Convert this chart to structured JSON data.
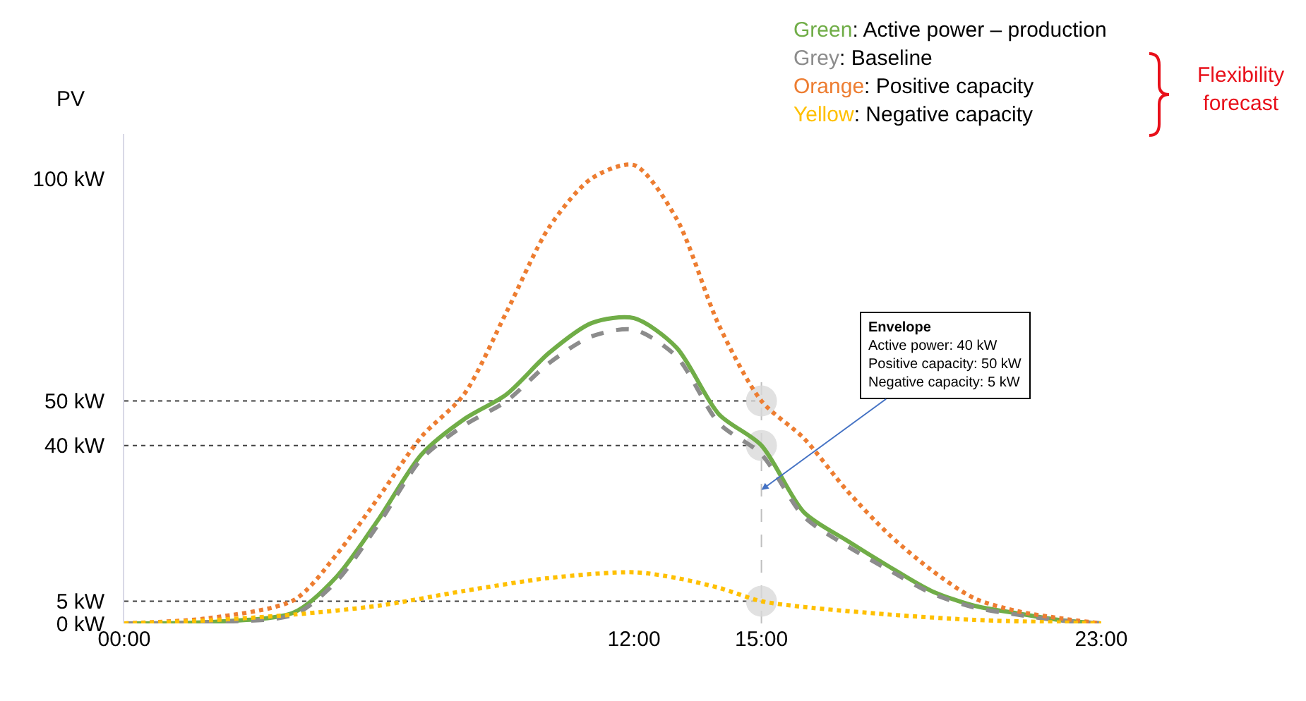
{
  "chart_data": {
    "type": "line",
    "ylabel": "PV",
    "x": [
      0,
      2,
      4,
      5,
      6,
      7,
      8,
      9,
      10,
      11,
      12,
      13,
      14,
      15,
      16,
      17,
      18,
      19,
      20,
      21,
      22,
      23
    ],
    "series": [
      {
        "name": "Green: Active power – production",
        "color": "#70ad47",
        "line_style": "solid",
        "values": [
          0,
          0.3,
          2.5,
          10.5,
          23.6,
          38,
          45.9,
          51.5,
          60.8,
          67.5,
          68.6,
          62,
          47,
          40,
          25,
          18.7,
          12.8,
          7.3,
          4,
          2.3,
          0.8,
          0
        ]
      },
      {
        "name": "Grey: Baseline",
        "color": "#8c8c8c",
        "line_style": "dashed",
        "values": [
          0,
          0.3,
          2,
          9.5,
          22.5,
          37,
          44.5,
          50,
          58.5,
          64.5,
          66,
          60,
          45,
          38,
          24,
          17.5,
          12,
          6.8,
          3.6,
          2,
          0.7,
          0
        ]
      },
      {
        "name": "Orange: Positive capacity",
        "color": "#ed7d31",
        "line_style": "dotted",
        "values": [
          0,
          1.2,
          5.3,
          15.5,
          28.5,
          42,
          51.5,
          70,
          89,
          100,
          103,
          91,
          67,
          50,
          41.6,
          30,
          20,
          12,
          5.7,
          2.8,
          1.2,
          0
        ]
      },
      {
        "name": "Yellow: Negative capacity",
        "color": "#ffc000",
        "line_style": "dotted",
        "x": [
          0,
          2,
          4,
          6,
          8,
          10,
          12,
          13,
          14,
          15,
          16,
          18,
          20,
          23
        ],
        "values": [
          0,
          0.7,
          2,
          4,
          7.3,
          10.2,
          11.5,
          10.2,
          8,
          5,
          3.7,
          2,
          0.8,
          0
        ]
      },
      {
        "type": "scatter",
        "color": "#d9d9d9",
        "marker": "circle",
        "x": [
          15,
          15,
          15
        ],
        "values": [
          50,
          40,
          5
        ]
      }
    ],
    "xlim": [
      0,
      23
    ],
    "xticks": [
      {
        "value": 0,
        "label": "00:00"
      },
      {
        "value": 12,
        "label": "12:00"
      },
      {
        "value": 15,
        "label": "15:00"
      },
      {
        "value": 23,
        "label": "23:00"
      }
    ],
    "ylim": [
      0,
      110
    ],
    "yticks": [
      {
        "value": 0,
        "label": "0 kW"
      },
      {
        "value": 5,
        "label": "5 kW"
      },
      {
        "value": 40,
        "label": "40 kW"
      },
      {
        "value": 50,
        "label": "50 kW"
      },
      {
        "value": 100,
        "label": "100 kW"
      }
    ],
    "ref_lines": [
      {
        "axis": "y",
        "value": 5,
        "color": "#404040",
        "line_style": "dotted"
      },
      {
        "axis": "y",
        "value": 40,
        "color": "#404040",
        "line_style": "dotted"
      },
      {
        "axis": "y",
        "value": 50,
        "color": "#404040",
        "line_style": "dotted"
      },
      {
        "axis": "x",
        "value": 15,
        "color": "#bfbfbf",
        "line_style": "dashed"
      }
    ],
    "annotations": [
      "Flexibility forecast",
      {
        "text": "Envelope\nActive power: 40 kW\nPositive capacity: 50 kW\nNegative capacity: 5 kW",
        "x": 15,
        "y": 30
      }
    ],
    "marker": "none",
    "grid": false,
    "legend": "top right"
  }
}
